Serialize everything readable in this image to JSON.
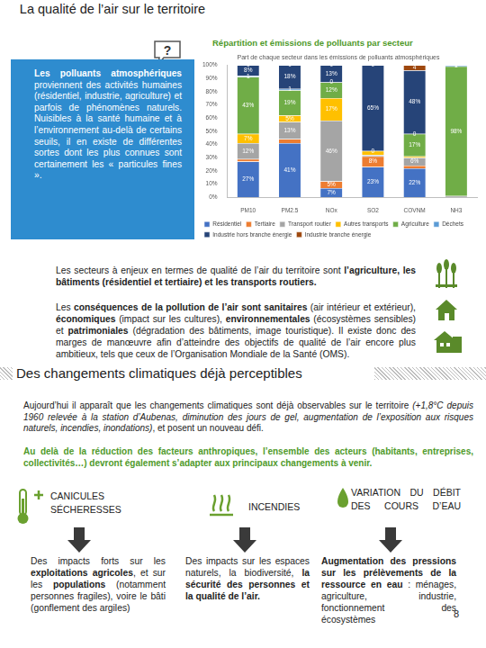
{
  "header": {
    "title": "La qualité de l’air sur le territoire",
    "icon": "?"
  },
  "intro": [
    {
      "text": "Les polluants atmosphériques",
      "bold": true
    },
    {
      "text": " proviennent des activités humaines (résidentiel, industrie, agriculture) et parfois de phénomènes naturels. Nuisibles à la santé humaine et à l’environnement au-delà de certains seuils, il en existe de différentes sortes dont les plus connues sont certainement les « particules fines »."
    }
  ],
  "chart_heading": "Répartition et émissions de polluants par secteur",
  "chart_data": {
    "type": "bar",
    "title": "Part de chaque secteur dans les émissions de polluants atmosphériques",
    "categories": [
      "PM10",
      "PM2.5",
      "NOx",
      "SO2",
      "COVNM",
      "NH3"
    ],
    "stacked": true,
    "data_labels": true,
    "legend": "bottom",
    "grid": false,
    "ylim": [
      0,
      100
    ],
    "yticks": [
      {
        "value": 0,
        "label": "0%"
      },
      {
        "value": 10,
        "label": "10%"
      },
      {
        "value": 20,
        "label": "20%"
      },
      {
        "value": 30,
        "label": "30%"
      },
      {
        "value": 40,
        "label": "40%"
      },
      {
        "value": 50,
        "label": "50%"
      },
      {
        "value": 60,
        "label": "60%"
      },
      {
        "value": 70,
        "label": "70%"
      },
      {
        "value": 80,
        "label": "80%"
      },
      {
        "value": 90,
        "label": "90%"
      },
      {
        "value": 100,
        "label": "100%"
      }
    ],
    "series": [
      {
        "name": "Résidentiel",
        "color": "#4472c4",
        "values": [
          27,
          41,
          7,
          23,
          22,
          0
        ],
        "value_labels": [
          "27%",
          "41%",
          "7%",
          "23%",
          "22%",
          null
        ]
      },
      {
        "name": "Tertiaire",
        "color": "#ed7d31",
        "values": [
          2,
          3,
          5,
          8,
          2,
          0
        ],
        "value_labels": [
          null,
          null,
          "5%",
          "8%",
          null,
          null
        ]
      },
      {
        "name": "Transport routier",
        "color": "#a5a5a5",
        "values": [
          12,
          13,
          46,
          1,
          6,
          1
        ],
        "value_labels": [
          "12%",
          "13%",
          "46%",
          null,
          "6%",
          null
        ]
      },
      {
        "name": "Autres transports",
        "color": "#ffc000",
        "values": [
          7,
          5,
          17,
          3,
          1,
          0
        ],
        "value_labels": [
          "7%",
          "5%",
          "17%",
          null,
          null,
          null
        ]
      },
      {
        "name": "Agriculture",
        "color": "#70ad47",
        "values": [
          43,
          19,
          12,
          0,
          17,
          98
        ],
        "value_labels": [
          "43%",
          "19%",
          "12%",
          null,
          "17%",
          "98%"
        ]
      },
      {
        "name": "Déchets",
        "color": "#5b9bd5",
        "values": [
          1,
          1,
          0,
          0,
          0,
          1
        ]
      },
      {
        "name": "Industrie hors branche énergie",
        "color": "#264478",
        "values": [
          8,
          18,
          13,
          65,
          48,
          0
        ],
        "value_labels": [
          "8%",
          "18%",
          "13%",
          "65%",
          "48%",
          null
        ]
      },
      {
        "name": "Industrie branche énergie",
        "color": "#9e480e",
        "values": [
          0,
          0,
          0,
          0,
          4,
          0
        ]
      }
    ]
  },
  "paragraphs": [
    [
      {
        "text": "Les secteurs à enjeux en termes de qualité de l’air du territoire sont "
      },
      {
        "text": "l’agriculture, les bâtiments (résidentiel et tertiaire) et les transports routiers.",
        "bold": true
      }
    ],
    [
      {
        "text": "Les "
      },
      {
        "text": "conséquences de la pollution de l’air sont sanitaires",
        "bold": true
      },
      {
        "text": " (air intérieur et extérieur), "
      },
      {
        "text": "économiques",
        "bold": true
      },
      {
        "text": " (impact sur les cultures), "
      },
      {
        "text": "environnementales",
        "bold": true
      },
      {
        "text": " (écosystèmes sensibles) et "
      },
      {
        "text": "patrimoniales",
        "bold": true
      },
      {
        "text": " (dégradation des bâtiments, image touristique). Il existe donc des marges de manœuvre afin d’atteindre des objectifs de qualité de l’air encore plus ambitieux, tels que ceux de l’Organisation Mondiale de la Santé (OMS)."
      }
    ]
  ],
  "section": {
    "title": "Des changements climatiques déjà perceptibles",
    "paragraph": [
      {
        "text": "Aujourd’hui il apparaît que les changements climatiques sont déjà observables sur le territoire "
      },
      {
        "text": "(+1,8°C depuis 1960 relevée à la station d’Aubenas, diminution des jours de gel, augmentation de l’exposition aux risques naturels, incendies, inondations)",
        "italic": true
      },
      {
        "text": ", et posent un nouveau défi."
      }
    ],
    "highlight": "Au delà de la réduction des facteurs anthropiques, l’ensemble des acteurs (habitants, entreprises, collectivités…) devront également s’adapter aux principaux changements à venir."
  },
  "columns": [
    {
      "heading": [
        "CANICULES",
        "SÉCHERESSES"
      ],
      "text": [
        {
          "text": "Des impacts forts sur les "
        },
        {
          "text": "exploitations agricoles",
          "bold": true
        },
        {
          "text": ", et sur les "
        },
        {
          "text": "populations",
          "bold": true
        },
        {
          "text": " (notamment personnes fragiles), voire le bâti (gonflement des argiles)"
        }
      ]
    },
    {
      "heading": [
        "INCENDIES"
      ],
      "text": [
        {
          "text": "Des impacts sur les espaces naturels, la biodiversité, "
        },
        {
          "text": "la sécurité des personnes et la qualité de l’air.",
          "bold": true
        }
      ]
    },
    {
      "heading": [
        "VARIATION DU DÉBIT DES COURS D’EAU"
      ],
      "text": [
        {
          "text": "Augmentation des pressions sur les prélèvements de la ressource en eau",
          "bold": true
        },
        {
          "text": " : ménages, agriculture, industrie, fonctionnement des écosystèmes"
        }
      ]
    }
  ],
  "page_number": "8"
}
